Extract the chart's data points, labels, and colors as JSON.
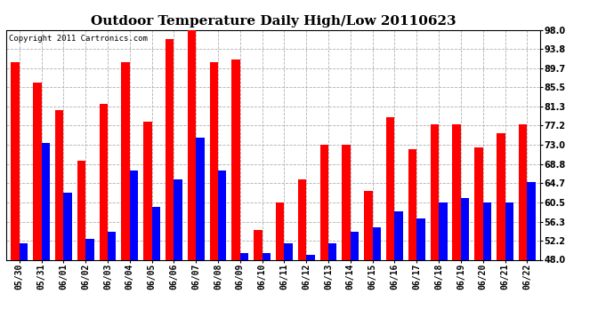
{
  "title": "Outdoor Temperature Daily High/Low 20110623",
  "copyright": "Copyright 2011 Cartronics.com",
  "dates": [
    "05/30",
    "05/31",
    "06/01",
    "06/02",
    "06/03",
    "06/04",
    "06/05",
    "06/06",
    "06/07",
    "06/08",
    "06/09",
    "06/10",
    "06/11",
    "06/12",
    "06/13",
    "06/14",
    "06/15",
    "06/16",
    "06/17",
    "06/18",
    "06/19",
    "06/20",
    "06/21",
    "06/22"
  ],
  "highs": [
    91.0,
    86.5,
    80.5,
    69.5,
    82.0,
    91.0,
    78.0,
    96.0,
    98.0,
    91.0,
    91.5,
    54.5,
    60.5,
    65.5,
    73.0,
    73.0,
    63.0,
    79.0,
    72.0,
    77.5,
    77.5,
    72.5,
    75.5,
    77.5
  ],
  "lows": [
    51.5,
    73.5,
    62.5,
    52.5,
    54.0,
    67.5,
    59.5,
    65.5,
    74.5,
    67.5,
    49.5,
    49.5,
    51.5,
    49.0,
    51.5,
    54.0,
    55.0,
    58.5,
    57.0,
    60.5,
    61.5,
    60.5,
    60.5,
    65.0
  ],
  "high_color": "#ff0000",
  "low_color": "#0000ff",
  "ylim_min": 48.0,
  "ylim_max": 98.0,
  "yticks": [
    48.0,
    52.2,
    56.3,
    60.5,
    64.7,
    68.8,
    73.0,
    77.2,
    81.3,
    85.5,
    89.7,
    93.8,
    98.0
  ],
  "bg_color": "#ffffff",
  "grid_color": "#b0b0b0",
  "bar_width": 0.38,
  "title_fontsize": 11,
  "tick_fontsize": 7,
  "copyright_fontsize": 6.5
}
